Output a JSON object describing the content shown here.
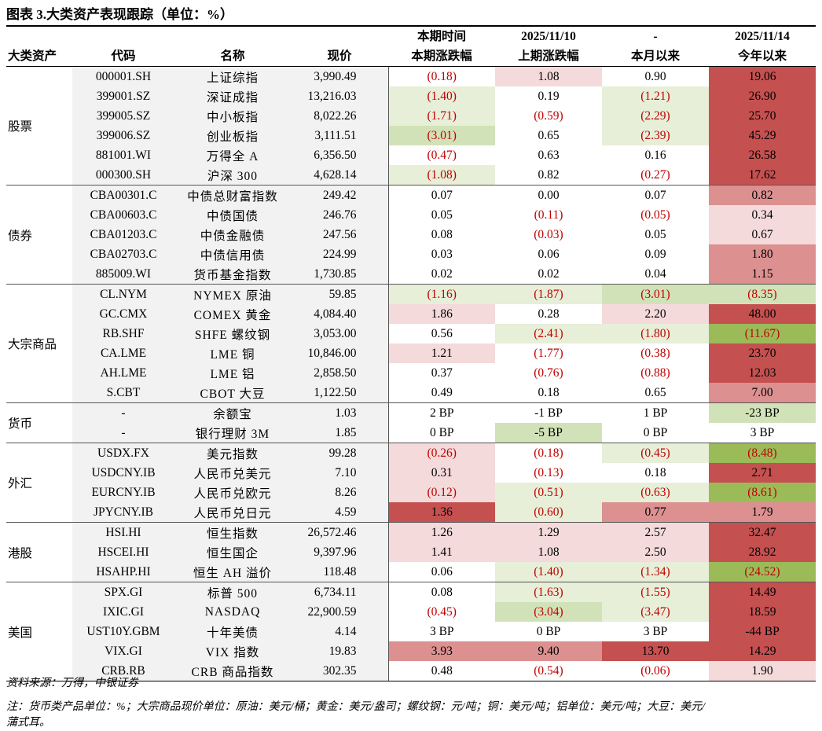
{
  "title": "图表 3.大类资产表现跟踪（单位：%）",
  "header": {
    "top": [
      "",
      "",
      "",
      "",
      "本期时间",
      "2025/11/10",
      "-",
      "2025/11/14"
    ],
    "bottom": [
      "大类资产",
      "代码",
      "名称",
      "现价",
      "本期涨跌幅",
      "上期涨跌幅",
      "本月以来",
      "今年以来"
    ]
  },
  "colors": {
    "neg_text": "#c00000",
    "dark_red": "#c55050",
    "mid_red": "#dc9090",
    "light_red": "#f4dada",
    "dark_green": "#9bbb59",
    "mid_green": "#d2e2b8",
    "light_green": "#e7efd8",
    "label_bg": "#f2f2f2"
  },
  "groups": [
    {
      "name": "股票",
      "rows": [
        {
          "code": "000001.SH",
          "name": "上证综指",
          "price": "3,990.49",
          "vals": [
            "(0.18)",
            "1.08",
            "0.90",
            "19.06"
          ],
          "fills": [
            "",
            "lr",
            "",
            "dr"
          ]
        },
        {
          "code": "399001.SZ",
          "name": "深证成指",
          "price": "13,216.03",
          "vals": [
            "(1.40)",
            "0.19",
            "(1.21)",
            "26.90"
          ],
          "fills": [
            "lg",
            "",
            "lg",
            "dr"
          ]
        },
        {
          "code": "399005.SZ",
          "name": "中小板指",
          "price": "8,022.26",
          "vals": [
            "(1.71)",
            "(0.59)",
            "(2.29)",
            "25.70"
          ],
          "fills": [
            "lg",
            "",
            "lg",
            "dr"
          ]
        },
        {
          "code": "399006.SZ",
          "name": "创业板指",
          "price": "3,111.51",
          "vals": [
            "(3.01)",
            "0.65",
            "(2.39)",
            "45.29"
          ],
          "fills": [
            "mg",
            "",
            "lg",
            "dr"
          ]
        },
        {
          "code": "881001.WI",
          "name": "万得全 A",
          "price": "6,356.50",
          "vals": [
            "(0.47)",
            "0.63",
            "0.16",
            "26.58"
          ],
          "fills": [
            "",
            "",
            "",
            "dr"
          ]
        },
        {
          "code": "000300.SH",
          "name": "沪深 300",
          "price": "4,628.14",
          "vals": [
            "(1.08)",
            "0.82",
            "(0.27)",
            "17.62"
          ],
          "fills": [
            "lg",
            "",
            "",
            "dr"
          ]
        }
      ]
    },
    {
      "name": "债券",
      "rows": [
        {
          "code": "CBA00301.C",
          "name": "中债总财富指数",
          "price": "249.42",
          "vals": [
            "0.07",
            "0.00",
            "0.07",
            "0.82"
          ],
          "fills": [
            "",
            "",
            "",
            "mr"
          ]
        },
        {
          "code": "CBA00603.C",
          "name": "中债国债",
          "price": "246.76",
          "vals": [
            "0.05",
            "(0.11)",
            "(0.05)",
            "0.34"
          ],
          "fills": [
            "",
            "",
            "",
            "lr"
          ]
        },
        {
          "code": "CBA01203.C",
          "name": "中债金融债",
          "price": "247.56",
          "vals": [
            "0.08",
            "(0.03)",
            "0.05",
            "0.67"
          ],
          "fills": [
            "",
            "",
            "",
            "lr"
          ]
        },
        {
          "code": "CBA02703.C",
          "name": "中债信用债",
          "price": "224.99",
          "vals": [
            "0.03",
            "0.06",
            "0.09",
            "1.80"
          ],
          "fills": [
            "",
            "",
            "",
            "mr"
          ]
        },
        {
          "code": "885009.WI",
          "name": "货币基金指数",
          "price": "1,730.85",
          "vals": [
            "0.02",
            "0.02",
            "0.04",
            "1.15"
          ],
          "fills": [
            "",
            "",
            "",
            "mr"
          ]
        }
      ]
    },
    {
      "name": "大宗商品",
      "rows": [
        {
          "code": "CL.NYM",
          "name": "NYMEX 原油",
          "price": "59.85",
          "vals": [
            "(1.16)",
            "(1.87)",
            "(3.01)",
            "(8.35)"
          ],
          "fills": [
            "lg",
            "lg",
            "mg",
            "mg"
          ]
        },
        {
          "code": "GC.CMX",
          "name": "COMEX 黄金",
          "price": "4,084.40",
          "vals": [
            "1.86",
            "0.28",
            "2.20",
            "48.00"
          ],
          "fills": [
            "lr",
            "",
            "lr",
            "dr"
          ]
        },
        {
          "code": "RB.SHF",
          "name": "SHFE 螺纹钢",
          "price": "3,053.00",
          "vals": [
            "0.56",
            "(2.41)",
            "(1.80)",
            "(11.67)"
          ],
          "fills": [
            "",
            "lg",
            "lg",
            "dg"
          ]
        },
        {
          "code": "CA.LME",
          "name": "LME 铜",
          "price": "10,846.00",
          "vals": [
            "1.21",
            "(1.77)",
            "(0.38)",
            "23.70"
          ],
          "fills": [
            "lr",
            "",
            "",
            "dr"
          ]
        },
        {
          "code": "AH.LME",
          "name": "LME 铝",
          "price": "2,858.50",
          "vals": [
            "0.37",
            "(0.76)",
            "(0.88)",
            "12.03"
          ],
          "fills": [
            "",
            "",
            "",
            "dr"
          ]
        },
        {
          "code": "S.CBT",
          "name": "CBOT 大豆",
          "price": "1,122.50",
          "vals": [
            "0.49",
            "0.18",
            "0.65",
            "7.00"
          ],
          "fills": [
            "",
            "",
            "",
            "mr"
          ]
        }
      ]
    },
    {
      "name": "货币",
      "rows": [
        {
          "code": "-",
          "name": "余额宝",
          "price": "1.03",
          "vals": [
            "2 BP",
            "-1 BP",
            "1 BP",
            "-23 BP"
          ],
          "fills": [
            "",
            "",
            "",
            "mg"
          ]
        },
        {
          "code": "-",
          "name": "银行理财 3M",
          "price": "1.85",
          "vals": [
            "0 BP",
            "-5 BP",
            "0 BP",
            "3 BP"
          ],
          "fills": [
            "",
            "mg",
            "",
            ""
          ]
        }
      ]
    },
    {
      "name": "外汇",
      "rows": [
        {
          "code": "USDX.FX",
          "name": "美元指数",
          "price": "99.28",
          "vals": [
            "(0.26)",
            "(0.18)",
            "(0.45)",
            "(8.48)"
          ],
          "fills": [
            "lr",
            "",
            "lg",
            "dg"
          ]
        },
        {
          "code": "USDCNY.IB",
          "name": "人民币兑美元",
          "price": "7.10",
          "vals": [
            "0.31",
            "(0.13)",
            "0.18",
            "2.71"
          ],
          "fills": [
            "lr",
            "",
            "",
            "dr"
          ]
        },
        {
          "code": "EURCNY.IB",
          "name": "人民币兑欧元",
          "price": "8.26",
          "vals": [
            "(0.12)",
            "(0.51)",
            "(0.63)",
            "(8.61)"
          ],
          "fills": [
            "lr",
            "lg",
            "lg",
            "dg"
          ]
        },
        {
          "code": "JPYCNY.IB",
          "name": "人民币兑日元",
          "price": "4.59",
          "vals": [
            "1.36",
            "(0.60)",
            "0.77",
            "1.79"
          ],
          "fills": [
            "dr",
            "lg",
            "mr",
            "mr"
          ]
        }
      ]
    },
    {
      "name": "港股",
      "rows": [
        {
          "code": "HSI.HI",
          "name": "恒生指数",
          "price": "26,572.46",
          "vals": [
            "1.26",
            "1.29",
            "2.57",
            "32.47"
          ],
          "fills": [
            "lr",
            "lr",
            "lr",
            "dr"
          ]
        },
        {
          "code": "HSCEI.HI",
          "name": "恒生国企",
          "price": "9,397.96",
          "vals": [
            "1.41",
            "1.08",
            "2.50",
            "28.92"
          ],
          "fills": [
            "lr",
            "lr",
            "lr",
            "dr"
          ]
        },
        {
          "code": "HSAHP.HI",
          "name": "恒生 AH 溢价",
          "price": "118.48",
          "vals": [
            "0.06",
            "(1.40)",
            "(1.34)",
            "(24.52)"
          ],
          "fills": [
            "",
            "lg",
            "lg",
            "dg"
          ]
        }
      ]
    },
    {
      "name": "美国",
      "rows": [
        {
          "code": "SPX.GI",
          "name": "标普 500",
          "price": "6,734.11",
          "vals": [
            "0.08",
            "(1.63)",
            "(1.55)",
            "14.49"
          ],
          "fills": [
            "",
            "lg",
            "lg",
            "dr"
          ]
        },
        {
          "code": "IXIC.GI",
          "name": "NASDAQ",
          "price": "22,900.59",
          "vals": [
            "(0.45)",
            "(3.04)",
            "(3.47)",
            "18.59"
          ],
          "fills": [
            "",
            "mg",
            "lg",
            "dr"
          ]
        },
        {
          "code": "UST10Y.GBM",
          "name": "十年美债",
          "price": "4.14",
          "vals": [
            "3 BP",
            "0 BP",
            "3 BP",
            "-44 BP"
          ],
          "fills": [
            "",
            "",
            "",
            "dr"
          ]
        },
        {
          "code": "VIX.GI",
          "name": "VIX 指数",
          "price": "19.83",
          "vals": [
            "3.93",
            "9.40",
            "13.70",
            "14.29"
          ],
          "fills": [
            "mr",
            "mr",
            "dr",
            "dr"
          ]
        },
        {
          "code": "CRB.RB",
          "name": "CRB 商品指数",
          "price": "302.35",
          "vals": [
            "0.48",
            "(0.54)",
            "(0.06)",
            "1.90"
          ],
          "fills": [
            "",
            "",
            "",
            "lr"
          ]
        }
      ]
    }
  ],
  "footer": {
    "source": "资料来源：万得，中银证券",
    "note_line1": "注：货币类产品单位：%；大宗商品现价单位：原油：美元/桶；黄金：美元/盎司；螺纹钢：元/吨；铜：美元/吨；铝单位：美元/吨；大豆：美元/",
    "note_line2": "蒲式耳。"
  }
}
